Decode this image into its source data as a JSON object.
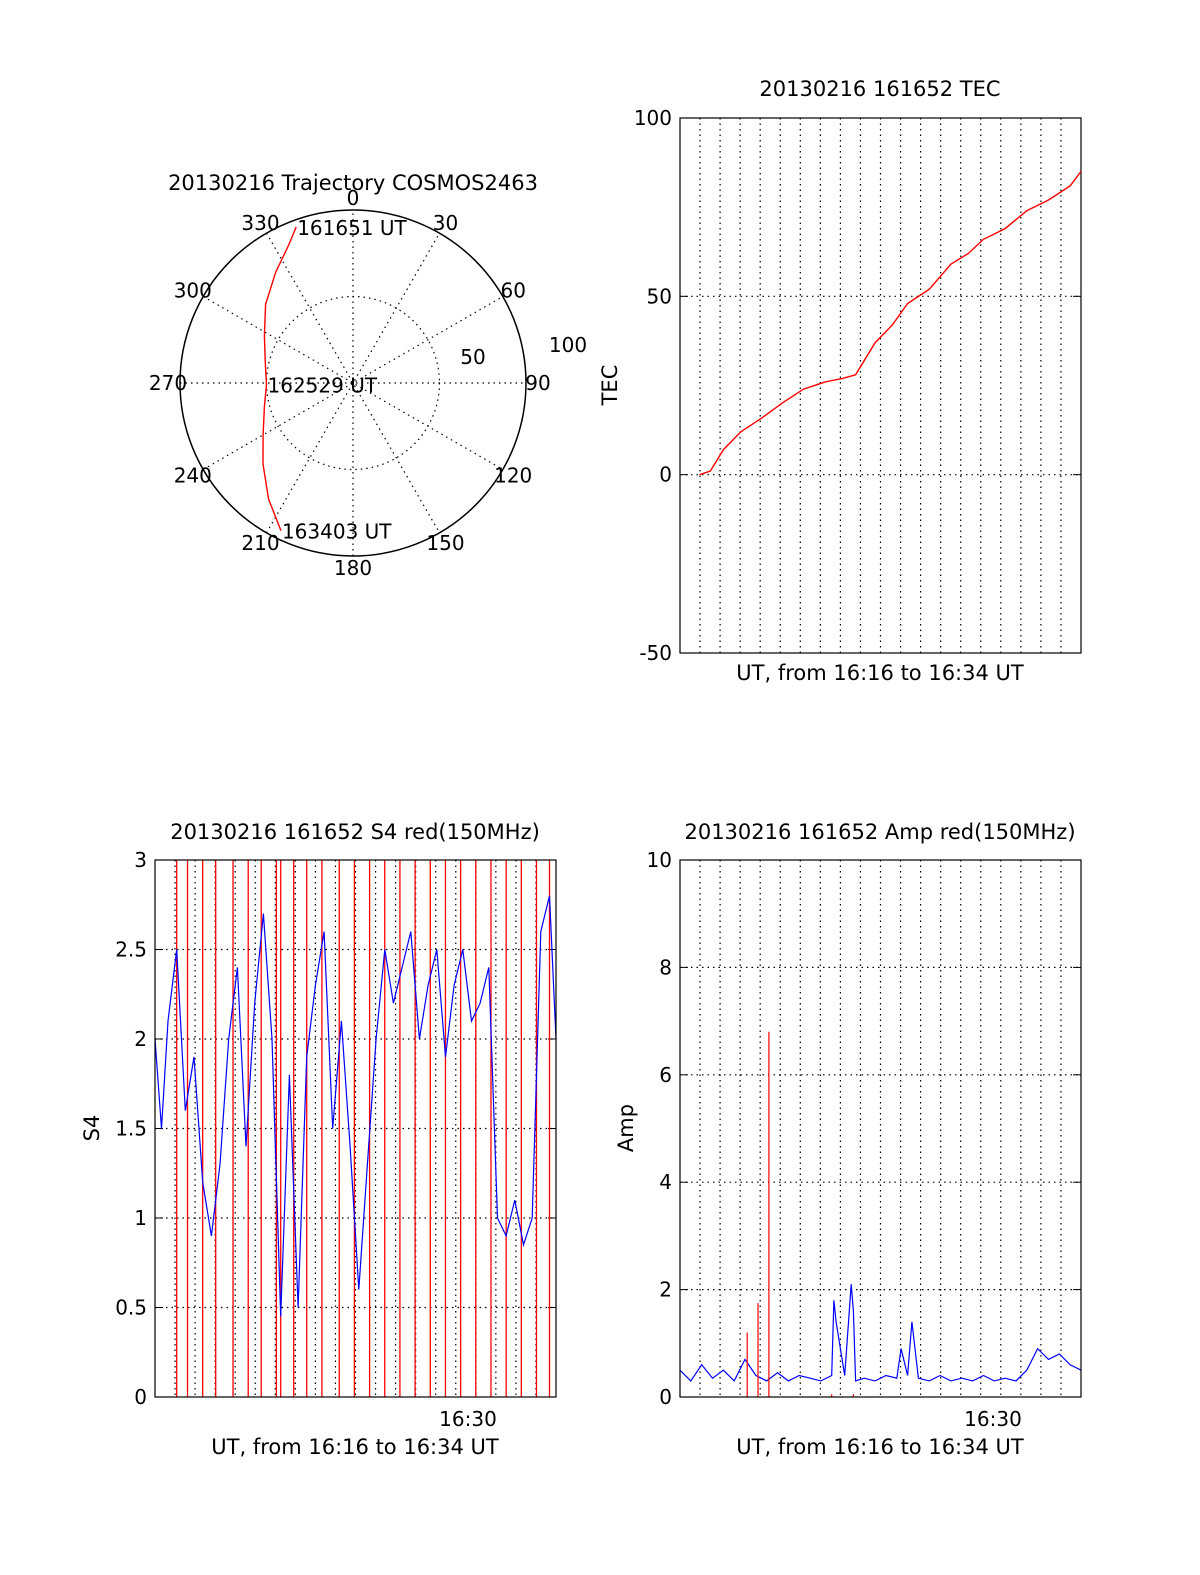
{
  "chart_data": [
    {
      "type": "polar",
      "title": "20130216 Trajectory COSMOS2463",
      "azimuth_labels": [
        "0",
        "30",
        "60",
        "90",
        "120",
        "150",
        "180",
        "210",
        "240",
        "270",
        "300",
        "330"
      ],
      "radial_labels": [
        "50",
        "100"
      ],
      "radial_max": 100,
      "trajectory_color": "#ff0000",
      "trajectory": [
        {
          "az": 340,
          "r": 96
        },
        {
          "az": 335,
          "r": 88
        },
        {
          "az": 325,
          "r": 78
        },
        {
          "az": 312,
          "r": 68
        },
        {
          "az": 298,
          "r": 58
        },
        {
          "az": 283,
          "r": 52
        },
        {
          "az": 269,
          "r": 50
        },
        {
          "az": 255,
          "r": 53
        },
        {
          "az": 240,
          "r": 60
        },
        {
          "az": 228,
          "r": 70
        },
        {
          "az": 216,
          "r": 83
        },
        {
          "az": 206,
          "r": 95
        }
      ],
      "annotations": [
        {
          "text": "161651 UT",
          "az": 340,
          "r": 96
        },
        {
          "text": "162529 UT",
          "az": 269,
          "r": 50
        },
        {
          "text": "163403 UT",
          "az": 206,
          "r": 95
        }
      ]
    },
    {
      "type": "line",
      "title": "20130216 161652 TEC",
      "xlabel": "UT, from 16:16 to 16:34 UT",
      "ylabel": "TEC",
      "ylim": [
        -50,
        100
      ],
      "yticks": [
        "-50",
        "0",
        "50",
        "100"
      ],
      "xlim_minutes": [
        16.0,
        34.5
      ],
      "color": "#ff0000",
      "series": [
        {
          "x": [
            16.9,
            17.4,
            18.0,
            18.8,
            19.8,
            20.7,
            21.7,
            22.7,
            23.5,
            24.1,
            25.0,
            25.8,
            26.5,
            27.5,
            28.5,
            29.3,
            30.0,
            31.0,
            32.0,
            33.0,
            34.0,
            34.5
          ],
          "y": [
            0,
            1,
            7,
            12,
            16,
            20,
            24,
            26,
            27,
            28,
            37,
            42,
            48,
            52,
            59,
            62,
            66,
            69,
            74,
            77,
            81,
            85
          ]
        }
      ]
    },
    {
      "type": "line",
      "title": "20130216 161652 S4 red(150MHz)",
      "xlabel": "UT, from 16:16 to 16:34 UT",
      "ylabel": "S4",
      "ylim": [
        0,
        3
      ],
      "yticks": [
        "0",
        "0.5",
        "1",
        "1.5",
        "2",
        "2.5",
        "3"
      ],
      "xtick_labels": [
        "16:30"
      ],
      "xlim_minutes": [
        16.0,
        34.5
      ],
      "series": [
        {
          "color": "#0000ff",
          "x": [
            16.0,
            16.3,
            16.6,
            17.0,
            17.4,
            17.8,
            18.2,
            18.6,
            19.0,
            19.4,
            19.8,
            20.2,
            20.6,
            21.0,
            21.4,
            21.8,
            22.2,
            22.6,
            23.0,
            23.4,
            23.8,
            24.2,
            24.6,
            25.0,
            25.4,
            25.8,
            26.2,
            26.6,
            27.0,
            27.4,
            27.8,
            28.2,
            28.6,
            29.0,
            29.4,
            29.8,
            30.2,
            30.6,
            31.0,
            31.4,
            31.8,
            32.2,
            32.6,
            33.0,
            33.4,
            33.8,
            34.2,
            34.5
          ],
          "y": [
            2.0,
            1.5,
            2.1,
            2.5,
            1.6,
            1.9,
            1.2,
            0.9,
            1.3,
            2.0,
            2.4,
            1.4,
            2.2,
            2.7,
            2.0,
            0.45,
            1.8,
            0.5,
            1.9,
            2.3,
            2.6,
            1.5,
            2.1,
            1.4,
            0.6,
            1.3,
            2.0,
            2.5,
            2.2,
            2.4,
            2.6,
            2.0,
            2.3,
            2.5,
            1.9,
            2.3,
            2.5,
            2.1,
            2.2,
            2.4,
            1.0,
            0.9,
            1.1,
            0.85,
            1.0,
            2.6,
            2.8,
            2.0
          ]
        },
        {
          "color": "#ff0000",
          "x": [
            17.0,
            17.5,
            18.2,
            18.8,
            19.6,
            20.3,
            20.9,
            21.6,
            21.8,
            22.4,
            23.0,
            23.7,
            24.5,
            25.2,
            25.9,
            26.6,
            27.3,
            28.0,
            28.7,
            29.4,
            30.1,
            30.8,
            31.5,
            32.2,
            32.9,
            33.6,
            34.2
          ],
          "y": [
            0,
            0,
            0,
            0,
            0,
            0,
            0,
            0,
            0,
            0,
            0,
            0,
            0,
            0,
            0,
            0,
            0,
            0,
            0,
            0,
            0,
            0,
            0,
            0,
            0,
            0,
            0
          ]
        }
      ]
    },
    {
      "type": "line",
      "title": "20130216 161652 Amp red(150MHz)",
      "xlabel": "UT, from 16:16 to 16:34 UT",
      "ylabel": "Amp",
      "ylim": [
        0,
        10
      ],
      "yticks": [
        "0",
        "2",
        "4",
        "6",
        "8",
        "10"
      ],
      "xtick_labels": [
        "16:30"
      ],
      "xlim_minutes": [
        16.0,
        34.5
      ],
      "series": [
        {
          "color": "#0000ff",
          "x": [
            16.0,
            16.5,
            17.0,
            17.5,
            18.0,
            18.5,
            19.0,
            19.5,
            20.0,
            20.5,
            21.0,
            21.5,
            22.0,
            22.5,
            23.0,
            23.1,
            23.2,
            23.6,
            23.9,
            24.0,
            24.1,
            24.5,
            25.0,
            25.5,
            26.0,
            26.2,
            26.5,
            26.7,
            27.0,
            27.5,
            28.0,
            28.5,
            29.0,
            29.5,
            30.0,
            30.5,
            31.0,
            31.5,
            32.0,
            32.5,
            33.0,
            33.5,
            34.0,
            34.5
          ],
          "y": [
            0.5,
            0.3,
            0.6,
            0.35,
            0.5,
            0.3,
            0.7,
            0.4,
            0.3,
            0.45,
            0.3,
            0.4,
            0.35,
            0.3,
            0.4,
            1.8,
            1.4,
            0.4,
            2.1,
            1.6,
            0.3,
            0.35,
            0.3,
            0.4,
            0.35,
            0.9,
            0.4,
            1.4,
            0.35,
            0.3,
            0.4,
            0.3,
            0.35,
            0.3,
            0.4,
            0.3,
            0.35,
            0.3,
            0.5,
            0.9,
            0.7,
            0.8,
            0.6,
            0.5
          ]
        },
        {
          "color": "#ff0000",
          "x": [
            19.1,
            19.6,
            20.1,
            23.0,
            24.0
          ],
          "y": [
            1.2,
            1.75,
            6.8,
            0.05,
            0.05
          ]
        }
      ]
    }
  ]
}
